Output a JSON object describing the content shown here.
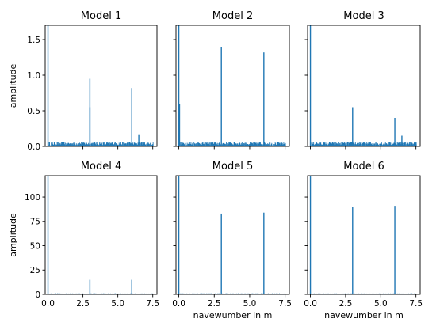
{
  "figure": {
    "background": "#ffffff",
    "line_color": "#1f77b4"
  },
  "chart_data": [
    {
      "type": "line",
      "title": "Model 1",
      "xlabel": "",
      "ylabel": "amplitude",
      "xlim": [
        -0.2,
        7.8
      ],
      "ylim": [
        0,
        1.7
      ],
      "xticks": [
        0.0,
        2.5,
        5.0,
        7.5
      ],
      "xtick_labels": [],
      "yticks": [
        0.0,
        0.5,
        1.0,
        1.5
      ],
      "ytick_labels": [
        "0.0",
        "0.5",
        "1.0",
        "1.5"
      ],
      "noise_level": 0.06,
      "series": [
        {
          "x": [
            0.0,
            3.0,
            3.0,
            6.0,
            6.5
          ],
          "values": [
            1.7,
            0.95,
            0.55,
            0.82,
            0.17
          ]
        }
      ]
    },
    {
      "type": "line",
      "title": "Model 2",
      "xlabel": "",
      "ylabel": "",
      "xlim": [
        -0.2,
        7.8
      ],
      "ylim": [
        0,
        1.7
      ],
      "xticks": [
        0.0,
        2.5,
        5.0,
        7.5
      ],
      "xtick_labels": [],
      "yticks": [
        0.0,
        0.5,
        1.0,
        1.5
      ],
      "ytick_labels": [],
      "noise_level": 0.06,
      "series": [
        {
          "x": [
            0.0,
            0.05,
            3.0,
            6.0
          ],
          "values": [
            1.7,
            0.6,
            1.4,
            1.32
          ]
        }
      ]
    },
    {
      "type": "line",
      "title": "Model 3",
      "xlabel": "",
      "ylabel": "",
      "xlim": [
        -0.2,
        7.8
      ],
      "ylim": [
        0,
        1.7
      ],
      "xticks": [
        0.0,
        2.5,
        5.0,
        7.5
      ],
      "xtick_labels": [],
      "yticks": [
        0.0,
        0.5,
        1.0,
        1.5
      ],
      "ytick_labels": [],
      "noise_level": 0.06,
      "series": [
        {
          "x": [
            0.0,
            3.0,
            6.0,
            6.5
          ],
          "values": [
            1.7,
            0.55,
            0.4,
            0.15
          ]
        }
      ]
    },
    {
      "type": "line",
      "title": "Model 4",
      "xlabel": "",
      "ylabel": "amplitude",
      "xlim": [
        -0.2,
        7.8
      ],
      "ylim": [
        0,
        122
      ],
      "xticks": [
        0.0,
        2.5,
        5.0,
        7.5
      ],
      "xtick_labels": [
        "0.0",
        "2.5",
        "5.0",
        "7.5"
      ],
      "yticks": [
        0,
        25,
        50,
        75,
        100
      ],
      "ytick_labels": [
        "0",
        "25",
        "50",
        "75",
        "100"
      ],
      "noise_level": 0.3,
      "series": [
        {
          "x": [
            0.0,
            3.0,
            6.0
          ],
          "values": [
            122,
            15,
            15
          ]
        }
      ]
    },
    {
      "type": "line",
      "title": "Model 5",
      "xlabel": "navewumber in m",
      "ylabel": "",
      "xlim": [
        -0.2,
        7.8
      ],
      "ylim": [
        0,
        122
      ],
      "xticks": [
        0.0,
        2.5,
        5.0,
        7.5
      ],
      "xtick_labels": [
        "0.0",
        "2.5",
        "5.0",
        "7.5"
      ],
      "yticks": [
        0,
        25,
        50,
        75,
        100
      ],
      "ytick_labels": [],
      "noise_level": 0.3,
      "series": [
        {
          "x": [
            0.0,
            3.0,
            6.0
          ],
          "values": [
            122,
            83,
            84
          ]
        }
      ]
    },
    {
      "type": "line",
      "title": "Model 6",
      "xlabel": "navewumber in m",
      "ylabel": "",
      "xlim": [
        -0.2,
        7.8
      ],
      "ylim": [
        0,
        122
      ],
      "xticks": [
        0.0,
        2.5,
        5.0,
        7.5
      ],
      "xtick_labels": [
        "0.0",
        "2.5",
        "5.0",
        "7.5"
      ],
      "yticks": [
        0,
        25,
        50,
        75,
        100
      ],
      "ytick_labels": [],
      "noise_level": 0.3,
      "series": [
        {
          "x": [
            0.0,
            3.0,
            6.0
          ],
          "values": [
            122,
            90,
            91
          ]
        }
      ]
    }
  ]
}
